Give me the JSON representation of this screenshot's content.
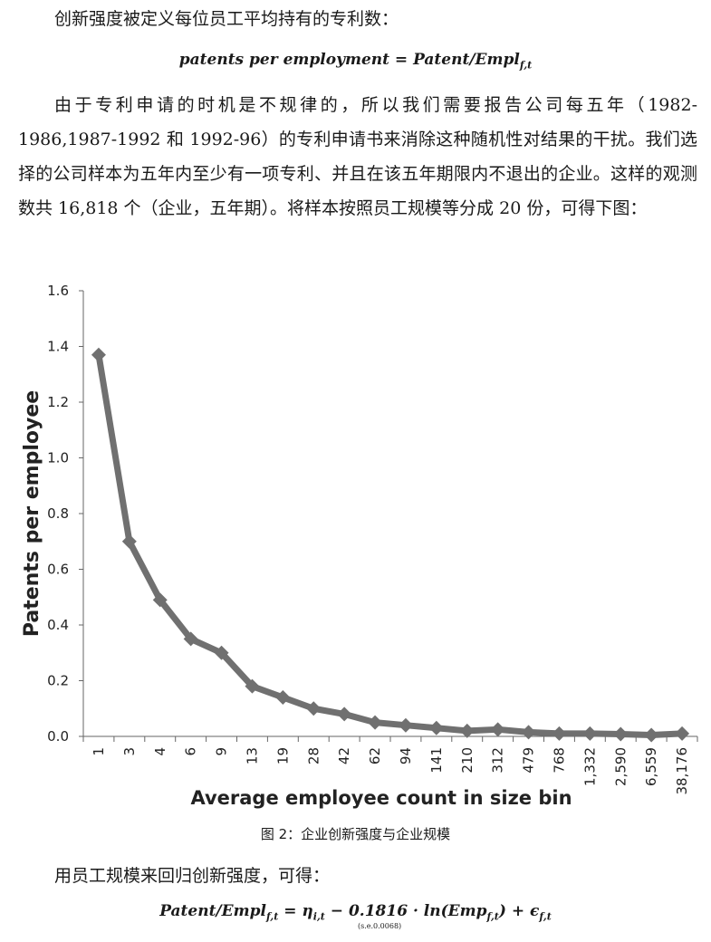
{
  "text": {
    "para1": "创新强度被定义每位员工平均持有的专利数：",
    "formula1_left": "patents per employment",
    "formula1_eq": " = ",
    "formula1_right": "Patent/Empl",
    "formula1_sub": "f,t",
    "para2": "由于专利申请的时机是不规律的，所以我们需要报告公司每五年（1982-1986,1987-1992 和 1992-96）的专利申请书来消除这种随机性对结果的干扰。我们选择的公司样本为五年内至少有一项专利、并且在该五年期限内不退出的企业。这样的观测数共 16,818 个（企业，五年期）。将样本按照员工规模等分成 20 份，可得下图：",
    "caption": "图 2：企业创新强度与企业规模",
    "para3": "用员工规模来回归创新强度，可得：",
    "formula2_a": "Patent/Empl",
    "formula2_sub1": "f,t",
    "formula2_b": " = η",
    "formula2_sub2": "i,t",
    "formula2_c": " − 0.1816 · ln(Emp",
    "formula2_sub3": "f,t",
    "formula2_d": ") + ϵ",
    "formula2_sub4": "f,t",
    "formula2_note": "(s.e.0.0068)"
  },
  "chart_data": {
    "type": "line",
    "xlabel": "Average employee count in size bin",
    "ylabel": "Patents per employee",
    "categories": [
      "1",
      "3",
      "4",
      "6",
      "9",
      "13",
      "19",
      "28",
      "42",
      "62",
      "94",
      "141",
      "210",
      "312",
      "479",
      "768",
      "1,332",
      "2,590",
      "6,559",
      "38,176"
    ],
    "values": [
      1.37,
      0.7,
      0.49,
      0.35,
      0.3,
      0.18,
      0.14,
      0.1,
      0.08,
      0.05,
      0.04,
      0.03,
      0.02,
      0.025,
      0.015,
      0.01,
      0.01,
      0.008,
      0.005,
      0.01
    ],
    "ylim": [
      0,
      1.6
    ],
    "yticks": [
      "0.0",
      "0.2",
      "0.4",
      "0.6",
      "0.8",
      "1.0",
      "1.2",
      "1.4",
      "1.6"
    ],
    "grid": false,
    "line_color": "#707070",
    "marker": "diamond"
  }
}
